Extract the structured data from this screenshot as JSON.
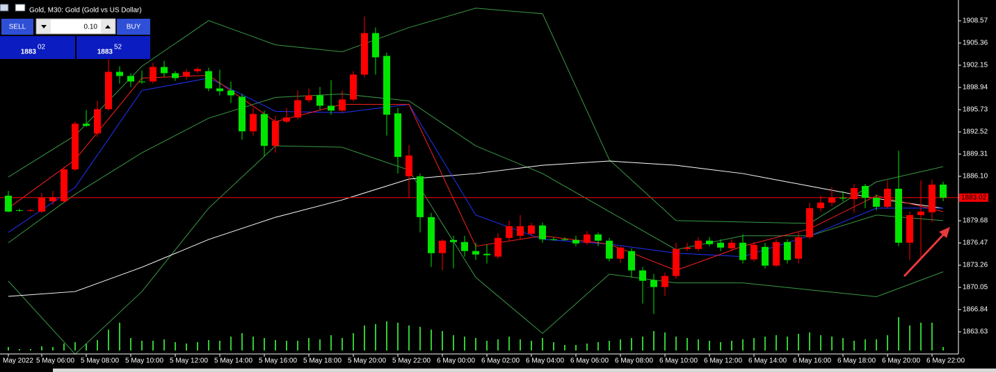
{
  "ui": {
    "header": "Gold, M30:  Gold (Gold vs US Dollar)",
    "sell_button": "SELL",
    "buy_button": "BUY",
    "lot": "0.10",
    "sell_price_big": "1883",
    "sell_price_small": "02",
    "buy_price_big": "1883",
    "buy_price_small": "52"
  },
  "chart_data": {
    "type": "candlestick",
    "bull_color": "#ff0000",
    "bear_color": "#00e600",
    "volume_color": "#32cd32",
    "categories": [
      "May 2022",
      null,
      null,
      "5 May 06:00",
      null,
      null,
      null,
      "5 May 08:00",
      null,
      null,
      null,
      "5 May 10:00",
      null,
      null,
      null,
      "5 May 12:00",
      null,
      null,
      null,
      "5 May 14:00",
      null,
      null,
      null,
      "5 May 16:00",
      null,
      null,
      null,
      "5 May 18:00",
      null,
      null,
      null,
      "5 May 20:00",
      null,
      null,
      null,
      "5 May 22:00",
      null,
      null,
      null,
      "6 May 00:00",
      null,
      null,
      null,
      "6 May 02:00",
      null,
      null,
      null,
      "6 May 04:00",
      null,
      null,
      null,
      "6 May 06:00",
      null,
      null,
      null,
      "6 May 08:00",
      null,
      null,
      null,
      "6 May 10:00",
      null,
      null,
      null,
      "6 May 12:00",
      null,
      null,
      null,
      "6 May 14:00",
      null,
      null,
      null,
      "6 May 16:00",
      null,
      null,
      null,
      "6 May 18:00",
      null,
      null,
      null,
      "6 May 20:00",
      null,
      null,
      null,
      "6 May 22:00",
      null
    ],
    "open": [
      1883.3,
      1881.2,
      1881.1,
      1881.0,
      1882.5,
      1882.5,
      1887.1,
      1893.7,
      1892.3,
      1895.8,
      1901.2,
      1900.6,
      1899.8,
      1899.8,
      1901.9,
      1901.0,
      1900.5,
      1901.3,
      1901.3,
      1898.8,
      1898.5,
      1897.6,
      1892.6,
      1895.1,
      1890.5,
      1894.0,
      1894.6,
      1897.1,
      1897.8,
      1896.3,
      1895.6,
      1897.2,
      1900.8,
      1906.8,
      1903.5,
      1895.2,
      1886.1,
      1886.1,
      1880.2,
      1875.0,
      1876.9,
      1876.6,
      1875.3,
      1874.9,
      1874.5,
      1877.2,
      1877.5,
      1877.8,
      1879.0,
      1877.0,
      1877.0,
      1876.9,
      1876.5,
      1877.7,
      1876.8,
      1874.2,
      1875.3,
      1872.5,
      1871.1,
      1870.1,
      1871.7,
      1875.6,
      1875.6,
      1876.8,
      1876.5,
      1875.7,
      1876.5,
      1874.1,
      1875.9,
      1873.2,
      1876.6,
      1874.2,
      1877.3,
      1881.5,
      1882.3,
      1883.0,
      1882.8,
      1884.7,
      1883.0,
      1881.7,
      1884.3,
      1876.5,
      1880.5,
      1880.9,
      1884.9
    ],
    "high": [
      1884.0,
      1881.4,
      1881.4,
      1883.7,
      1884.0,
      1887.5,
      1894.0,
      1895.7,
      1897.0,
      1903.0,
      1902.0,
      1901.0,
      1901.4,
      1902.5,
      1902.8,
      1901.3,
      1901.6,
      1901.9,
      1901.8,
      1901.5,
      1899.8,
      1898.0,
      1896.0,
      1895.6,
      1894.8,
      1896.0,
      1898.5,
      1898.8,
      1899.0,
      1900.0,
      1898.5,
      1901.3,
      1909.2,
      1907.6,
      1904.0,
      1896.0,
      1890.6,
      1886.5,
      1880.8,
      1877.0,
      1877.5,
      1877.5,
      1876.5,
      1876.2,
      1877.9,
      1879.7,
      1880.5,
      1879.4,
      1879.4,
      1877.3,
      1877.3,
      1877.5,
      1878.2,
      1878.0,
      1877.2,
      1876.0,
      1875.7,
      1873.0,
      1872.0,
      1872.2,
      1876.5,
      1876.5,
      1877.3,
      1877.3,
      1877.0,
      1877.0,
      1877.7,
      1876.6,
      1876.5,
      1877.0,
      1877.0,
      1878.0,
      1882.3,
      1883.3,
      1884.5,
      1884.0,
      1885.0,
      1885.0,
      1883.5,
      1885.5,
      1889.8,
      1881.0,
      1885.5,
      1885.6,
      1885.3
    ],
    "low": [
      1880.9,
      1881.0,
      1881.0,
      1880.8,
      1882.0,
      1882.3,
      1886.9,
      1893.2,
      1891.8,
      1895.6,
      1899.5,
      1899.0,
      1899.5,
      1899.5,
      1900.5,
      1899.9,
      1900.1,
      1901.0,
      1898.4,
      1897.8,
      1896.7,
      1891.4,
      1892.0,
      1889.0,
      1889.5,
      1893.8,
      1894.3,
      1896.8,
      1895.7,
      1895.0,
      1895.3,
      1896.9,
      1900.4,
      1900.8,
      1892.0,
      1886.5,
      1883.0,
      1878.0,
      1873.0,
      1872.5,
      1872.8,
      1874.5,
      1874.0,
      1873.5,
      1874.2,
      1876.8,
      1877.0,
      1877.5,
      1876.5,
      1876.8,
      1876.8,
      1876.0,
      1876.2,
      1876.0,
      1873.8,
      1873.6,
      1871.5,
      1867.7,
      1866.2,
      1868.8,
      1871.3,
      1875.3,
      1875.3,
      1876.0,
      1875.3,
      1875.3,
      1873.5,
      1873.8,
      1872.8,
      1873.0,
      1873.5,
      1873.5,
      1877.0,
      1881.0,
      1881.8,
      1882.5,
      1880.8,
      1881.5,
      1881.2,
      1881.5,
      1876.0,
      1874.0,
      1874.0,
      1879.5,
      1882.5
    ],
    "close": [
      1881.0,
      1881.1,
      1881.2,
      1883.0,
      1883.1,
      1887.1,
      1893.7,
      1893.4,
      1895.8,
      1901.2,
      1900.6,
      1899.8,
      1899.8,
      1901.9,
      1901.0,
      1900.3,
      1901.2,
      1901.6,
      1898.8,
      1898.4,
      1897.8,
      1892.6,
      1895.1,
      1890.5,
      1894.1,
      1894.6,
      1897.1,
      1897.8,
      1896.3,
      1895.6,
      1897.2,
      1900.8,
      1906.8,
      1903.3,
      1895.0,
      1888.9,
      1889.1,
      1880.2,
      1875.0,
      1876.8,
      1876.6,
      1875.3,
      1874.8,
      1874.7,
      1877.2,
      1878.9,
      1878.9,
      1879.0,
      1877.0,
      1877.0,
      1877.0,
      1876.4,
      1877.7,
      1876.8,
      1874.2,
      1875.8,
      1872.5,
      1871.0,
      1870.1,
      1871.7,
      1875.6,
      1875.8,
      1876.8,
      1876.3,
      1875.8,
      1876.5,
      1874.0,
      1876.2,
      1873.2,
      1876.6,
      1874.0,
      1877.3,
      1881.5,
      1882.3,
      1883.0,
      1883.0,
      1884.4,
      1883.0,
      1881.7,
      1884.3,
      1876.5,
      1880.5,
      1881.0,
      1884.9,
      1883.02
    ],
    "volume": [
      5,
      2,
      2,
      6,
      5,
      10,
      12,
      10,
      15,
      30,
      40,
      18,
      14,
      14,
      16,
      12,
      10,
      12,
      15,
      14,
      20,
      25,
      20,
      18,
      15,
      14,
      14,
      18,
      16,
      22,
      18,
      25,
      36,
      38,
      42,
      40,
      36,
      34,
      30,
      28,
      22,
      20,
      18,
      14,
      16,
      20,
      16,
      14,
      18,
      12,
      8,
      8,
      10,
      12,
      14,
      16,
      18,
      20,
      28,
      26,
      20,
      18,
      16,
      14,
      12,
      14,
      16,
      18,
      20,
      22,
      20,
      24,
      26,
      22,
      20,
      18,
      14,
      16,
      16,
      22,
      48,
      36,
      40,
      40,
      5
    ],
    "indicators": [
      {
        "color": "#3a9a46",
        "x": [
          0,
          6,
          12,
          18,
          24,
          30,
          36,
          42,
          48,
          54,
          60,
          66,
          72,
          78,
          84
        ],
        "values": [
          1886.0,
          1892.0,
          1902.0,
          1908.6,
          1905.1,
          1904.1,
          1907.6,
          1910.4,
          1909.6,
          1888.5,
          1879.7,
          1879.5,
          1879.3,
          1885.3,
          1887.5
        ]
      },
      {
        "color": "#3a9a46",
        "x": [
          0,
          6,
          12,
          18,
          24,
          30,
          36,
          42,
          48,
          54,
          60,
          66,
          72,
          78,
          84
        ],
        "values": [
          1876.5,
          1883.5,
          1889.5,
          1894.5,
          1897.5,
          1898.0,
          1897.0,
          1890.5,
          1886.5,
          1881.0,
          1875.5,
          1877.5,
          1877.5,
          1880.5,
          1879.7
        ]
      },
      {
        "color": "#3a9a46",
        "x": [
          0,
          6,
          12,
          18,
          24,
          30,
          36,
          42,
          48,
          54,
          60,
          66,
          72,
          78,
          84
        ],
        "values": [
          1870.96,
          1860.4,
          1869.45,
          1881.5,
          1890.5,
          1890.3,
          1887.0,
          1871.5,
          1863.4,
          1871.96,
          1870.7,
          1870.7,
          1869.7,
          1868.7,
          1872.3
        ]
      },
      {
        "color": "#ffffff",
        "x": [
          0,
          6,
          12,
          18,
          24,
          30,
          36,
          42,
          48,
          54,
          60,
          66,
          72,
          78,
          84
        ],
        "values": [
          1868.75,
          1869.45,
          1872.96,
          1876.97,
          1880.18,
          1882.69,
          1885.7,
          1886.5,
          1887.7,
          1888.31,
          1887.7,
          1886.5,
          1884.69,
          1882.89,
          1881.48
        ]
      },
      {
        "color": "#2233ff",
        "x": [
          0,
          6,
          12,
          18,
          24,
          30,
          36,
          42,
          48,
          54,
          60,
          66,
          72,
          78,
          84
        ],
        "values": [
          1878.0,
          1884.5,
          1898.5,
          1900.3,
          1895.5,
          1895.3,
          1896.5,
          1880.5,
          1877.0,
          1876.3,
          1875.0,
          1874.5,
          1877.5,
          1881.5,
          1881.5
        ]
      },
      {
        "color": "#ff2020",
        "x": [
          0,
          6,
          12,
          18,
          24,
          30,
          36,
          42,
          48,
          54,
          60,
          66,
          72,
          78,
          84
        ],
        "values": [
          1881.5,
          1888.5,
          1900.3,
          1900.7,
          1894.0,
          1896.5,
          1896.5,
          1876.0,
          1877.5,
          1876.3,
          1872.5,
          1876.0,
          1878.5,
          1883.3,
          1881.0
        ]
      }
    ],
    "ylim": [
      1860.43,
      1911.58
    ],
    "yticks": [
      1908.57,
      1905.36,
      1902.15,
      1898.94,
      1895.73,
      1892.52,
      1889.31,
      {
        "value": 1886.1,
        "label": "1886.10"
      },
      1879.68,
      1876.47,
      1873.26,
      1870.05,
      1866.84,
      1863.63
    ],
    "price_line": {
      "value": 1883.02,
      "label": "1883.02"
    },
    "price_line_color": "#ff0000"
  }
}
